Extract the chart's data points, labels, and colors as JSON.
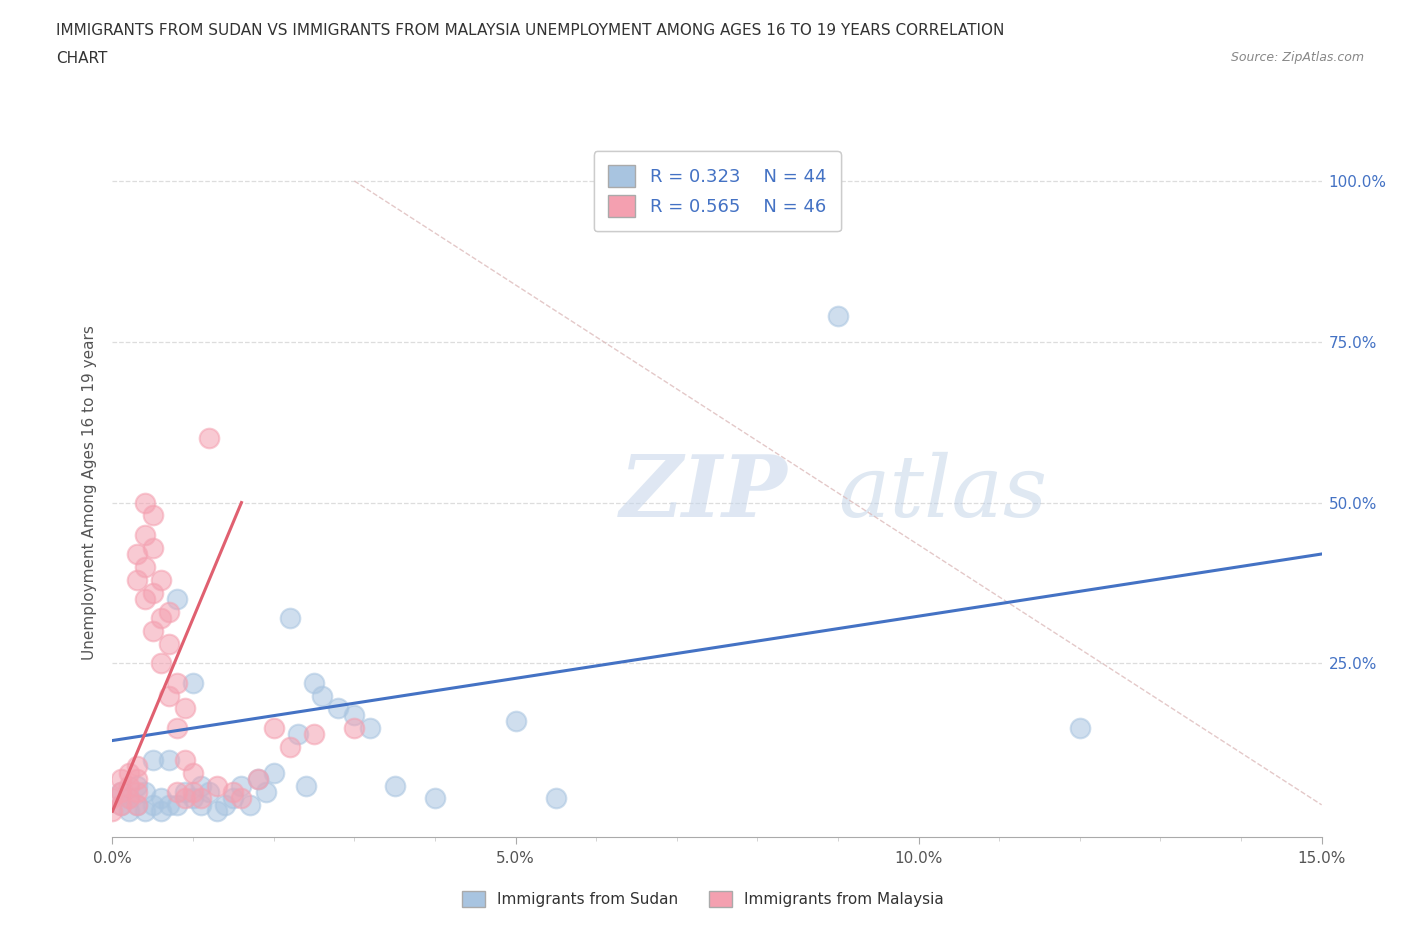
{
  "title_line1": "IMMIGRANTS FROM SUDAN VS IMMIGRANTS FROM MALAYSIA UNEMPLOYMENT AMONG AGES 16 TO 19 YEARS CORRELATION",
  "title_line2": "CHART",
  "source_text": "Source: ZipAtlas.com",
  "ylabel": "Unemployment Among Ages 16 to 19 years",
  "xlim": [
    0.0,
    0.15
  ],
  "ylim": [
    -0.02,
    1.05
  ],
  "xtick_labels": [
    "0.0%",
    "",
    "",
    "",
    "",
    "5.0%",
    "",
    "",
    "",
    "",
    "10.0%",
    "",
    "",
    "",
    "",
    "15.0%"
  ],
  "xtick_values": [
    0.0,
    0.01,
    0.02,
    0.03,
    0.04,
    0.05,
    0.06,
    0.07,
    0.08,
    0.09,
    0.1,
    0.11,
    0.12,
    0.13,
    0.14,
    0.15
  ],
  "ytick_labels": [
    "25.0%",
    "50.0%",
    "75.0%",
    "100.0%"
  ],
  "ytick_values": [
    0.25,
    0.5,
    0.75,
    1.0
  ],
  "watermark_zip": "ZIP",
  "watermark_atlas": "atlas",
  "legend_sudan_r": "0.323",
  "legend_sudan_n": "44",
  "legend_malaysia_r": "0.565",
  "legend_malaysia_n": "46",
  "sudan_color": "#a8c4e0",
  "malaysia_color": "#f4a0b0",
  "sudan_line_color": "#4472c4",
  "malaysia_line_color": "#e06070",
  "background_color": "#ffffff",
  "sudan_points": [
    [
      0.001,
      0.05
    ],
    [
      0.001,
      0.03
    ],
    [
      0.002,
      0.04
    ],
    [
      0.002,
      0.02
    ],
    [
      0.003,
      0.06
    ],
    [
      0.003,
      0.03
    ],
    [
      0.004,
      0.05
    ],
    [
      0.004,
      0.02
    ],
    [
      0.005,
      0.03
    ],
    [
      0.005,
      0.1
    ],
    [
      0.006,
      0.04
    ],
    [
      0.006,
      0.02
    ],
    [
      0.007,
      0.03
    ],
    [
      0.007,
      0.1
    ],
    [
      0.008,
      0.35
    ],
    [
      0.008,
      0.03
    ],
    [
      0.009,
      0.05
    ],
    [
      0.01,
      0.04
    ],
    [
      0.01,
      0.22
    ],
    [
      0.011,
      0.06
    ],
    [
      0.011,
      0.03
    ],
    [
      0.012,
      0.05
    ],
    [
      0.013,
      0.02
    ],
    [
      0.014,
      0.03
    ],
    [
      0.015,
      0.04
    ],
    [
      0.016,
      0.06
    ],
    [
      0.017,
      0.03
    ],
    [
      0.018,
      0.07
    ],
    [
      0.019,
      0.05
    ],
    [
      0.02,
      0.08
    ],
    [
      0.022,
      0.32
    ],
    [
      0.023,
      0.14
    ],
    [
      0.024,
      0.06
    ],
    [
      0.025,
      0.22
    ],
    [
      0.026,
      0.2
    ],
    [
      0.028,
      0.18
    ],
    [
      0.03,
      0.17
    ],
    [
      0.032,
      0.15
    ],
    [
      0.035,
      0.06
    ],
    [
      0.04,
      0.04
    ],
    [
      0.05,
      0.16
    ],
    [
      0.055,
      0.04
    ],
    [
      0.09,
      0.79
    ],
    [
      0.12,
      0.15
    ]
  ],
  "malaysia_points": [
    [
      0.0,
      0.02
    ],
    [
      0.0,
      0.04
    ],
    [
      0.001,
      0.03
    ],
    [
      0.001,
      0.05
    ],
    [
      0.001,
      0.07
    ],
    [
      0.002,
      0.04
    ],
    [
      0.002,
      0.06
    ],
    [
      0.002,
      0.08
    ],
    [
      0.003,
      0.03
    ],
    [
      0.003,
      0.05
    ],
    [
      0.003,
      0.07
    ],
    [
      0.003,
      0.09
    ],
    [
      0.003,
      0.38
    ],
    [
      0.003,
      0.42
    ],
    [
      0.004,
      0.35
    ],
    [
      0.004,
      0.4
    ],
    [
      0.004,
      0.45
    ],
    [
      0.004,
      0.5
    ],
    [
      0.005,
      0.3
    ],
    [
      0.005,
      0.36
    ],
    [
      0.005,
      0.43
    ],
    [
      0.005,
      0.48
    ],
    [
      0.006,
      0.25
    ],
    [
      0.006,
      0.32
    ],
    [
      0.006,
      0.38
    ],
    [
      0.007,
      0.2
    ],
    [
      0.007,
      0.28
    ],
    [
      0.007,
      0.33
    ],
    [
      0.008,
      0.05
    ],
    [
      0.008,
      0.15
    ],
    [
      0.008,
      0.22
    ],
    [
      0.009,
      0.04
    ],
    [
      0.009,
      0.1
    ],
    [
      0.009,
      0.18
    ],
    [
      0.01,
      0.05
    ],
    [
      0.01,
      0.08
    ],
    [
      0.011,
      0.04
    ],
    [
      0.012,
      0.6
    ],
    [
      0.013,
      0.06
    ],
    [
      0.015,
      0.05
    ],
    [
      0.016,
      0.04
    ],
    [
      0.018,
      0.07
    ],
    [
      0.02,
      0.15
    ],
    [
      0.022,
      0.12
    ],
    [
      0.025,
      0.14
    ],
    [
      0.03,
      0.15
    ]
  ],
  "malaysia_line": [
    0.0,
    0.015,
    0.5
  ],
  "sudan_line": [
    0.0,
    0.15,
    0.05,
    0.42
  ]
}
